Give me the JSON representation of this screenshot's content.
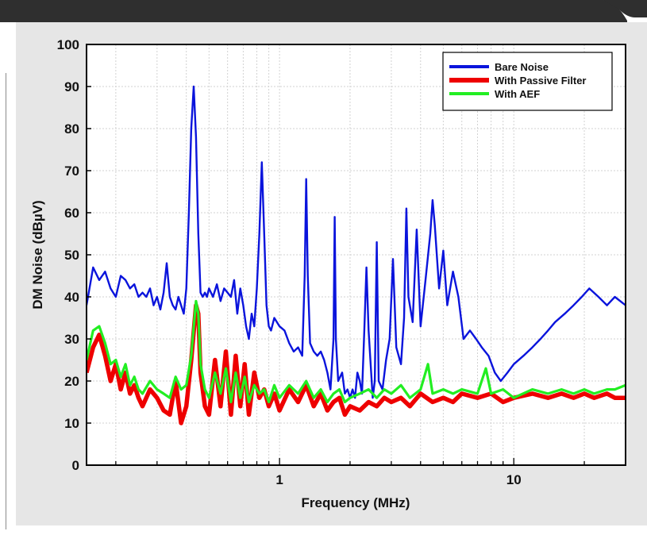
{
  "chart_data": {
    "type": "line",
    "xlabel": "Frequency (MHz)",
    "ylabel": "DM Noise (dBµV)",
    "x_scale": "log",
    "xlim": [
      0.15,
      30
    ],
    "ylim": [
      0,
      100
    ],
    "x_ticks": [
      {
        "value": 1,
        "label": "1"
      },
      {
        "value": 10,
        "label": "10"
      }
    ],
    "y_ticks": [
      0,
      10,
      20,
      30,
      40,
      50,
      60,
      70,
      80,
      90,
      100
    ],
    "grid": true,
    "legend_position": "top-right",
    "series": [
      {
        "name": "Bare Noise",
        "color": "#0a14dc",
        "x": [
          0.15,
          0.16,
          0.17,
          0.18,
          0.19,
          0.2,
          0.21,
          0.22,
          0.23,
          0.24,
          0.25,
          0.26,
          0.27,
          0.28,
          0.29,
          0.3,
          0.31,
          0.32,
          0.33,
          0.34,
          0.35,
          0.36,
          0.37,
          0.38,
          0.39,
          0.4,
          0.41,
          0.42,
          0.43,
          0.44,
          0.45,
          0.46,
          0.47,
          0.48,
          0.49,
          0.5,
          0.52,
          0.54,
          0.56,
          0.58,
          0.6,
          0.62,
          0.64,
          0.66,
          0.68,
          0.7,
          0.72,
          0.74,
          0.76,
          0.78,
          0.8,
          0.82,
          0.84,
          0.86,
          0.88,
          0.9,
          0.92,
          0.95,
          1.0,
          1.05,
          1.1,
          1.15,
          1.2,
          1.25,
          1.28,
          1.3,
          1.32,
          1.35,
          1.4,
          1.45,
          1.5,
          1.55,
          1.6,
          1.65,
          1.7,
          1.72,
          1.74,
          1.78,
          1.85,
          1.9,
          1.95,
          2.0,
          2.05,
          2.1,
          2.15,
          2.2,
          2.25,
          2.3,
          2.35,
          2.4,
          2.5,
          2.55,
          2.6,
          2.65,
          2.75,
          2.85,
          2.95,
          3.05,
          3.15,
          3.3,
          3.4,
          3.48,
          3.55,
          3.7,
          3.85,
          4.0,
          4.2,
          4.4,
          4.5,
          4.6,
          4.8,
          5.0,
          5.2,
          5.5,
          5.8,
          6.1,
          6.5,
          6.9,
          7.3,
          7.8,
          8.3,
          8.8,
          9.4,
          10.0,
          11.0,
          12.0,
          13.0,
          14.0,
          15.0,
          16.5,
          18.0,
          19.5,
          21.0,
          23.0,
          25.0,
          27.0,
          30.0
        ],
        "values": [
          38,
          47,
          44,
          46,
          42,
          40,
          45,
          44,
          42,
          43,
          40,
          41,
          40,
          42,
          38,
          40,
          37,
          41,
          48,
          40,
          38,
          37,
          40,
          38,
          36,
          42,
          60,
          80,
          90,
          78,
          55,
          41,
          40,
          41,
          40,
          42,
          40,
          43,
          39,
          42,
          41,
          40,
          44,
          36,
          42,
          38,
          33,
          30,
          36,
          33,
          42,
          55,
          72,
          55,
          38,
          33,
          32,
          35,
          33,
          32,
          29,
          27,
          28,
          26,
          45,
          68,
          45,
          29,
          27,
          26,
          27,
          25,
          22,
          18,
          30,
          59,
          30,
          20,
          22,
          17,
          18,
          16,
          18,
          16,
          22,
          20,
          17,
          32,
          47,
          32,
          16,
          20,
          53,
          20,
          18,
          25,
          30,
          49,
          28,
          24,
          35,
          61,
          40,
          34,
          56,
          33,
          44,
          55,
          63,
          57,
          42,
          51,
          38,
          46,
          40,
          30,
          32,
          30,
          28,
          26,
          22,
          20,
          22,
          24,
          26,
          28,
          30,
          32,
          34,
          36,
          38,
          40,
          42,
          40,
          38,
          40,
          38
        ]
      },
      {
        "name": "With Passive Filter",
        "color": "#ee0000",
        "x": [
          0.15,
          0.16,
          0.17,
          0.18,
          0.19,
          0.2,
          0.21,
          0.22,
          0.23,
          0.24,
          0.25,
          0.26,
          0.28,
          0.3,
          0.32,
          0.34,
          0.36,
          0.38,
          0.4,
          0.42,
          0.44,
          0.45,
          0.46,
          0.48,
          0.5,
          0.53,
          0.56,
          0.59,
          0.62,
          0.65,
          0.68,
          0.71,
          0.74,
          0.78,
          0.82,
          0.86,
          0.9,
          0.95,
          1.0,
          1.1,
          1.2,
          1.3,
          1.4,
          1.5,
          1.6,
          1.7,
          1.8,
          1.9,
          2.0,
          2.2,
          2.4,
          2.6,
          2.8,
          3.0,
          3.3,
          3.6,
          4.0,
          4.5,
          5.0,
          5.5,
          6.0,
          7.0,
          8.0,
          9.0,
          10.0,
          12.0,
          14.0,
          16.0,
          18.0,
          20.0,
          22.0,
          25.0,
          27.0,
          30.0
        ],
        "values": [
          22,
          28,
          31,
          26,
          20,
          24,
          18,
          22,
          17,
          19,
          16,
          14,
          18,
          16,
          13,
          12,
          20,
          10,
          14,
          25,
          38,
          36,
          22,
          14,
          12,
          25,
          14,
          27,
          12,
          26,
          14,
          24,
          12,
          22,
          16,
          18,
          14,
          17,
          13,
          18,
          15,
          19,
          14,
          17,
          13,
          15,
          16,
          12,
          14,
          13,
          15,
          14,
          16,
          15,
          16,
          14,
          17,
          15,
          16,
          15,
          17,
          16,
          17,
          15,
          16,
          17,
          16,
          17,
          16,
          17,
          16,
          17,
          16,
          16
        ]
      },
      {
        "name": "With AEF",
        "color": "#22ee22",
        "x": [
          0.15,
          0.16,
          0.17,
          0.18,
          0.19,
          0.2,
          0.21,
          0.22,
          0.23,
          0.24,
          0.25,
          0.26,
          0.28,
          0.3,
          0.32,
          0.34,
          0.36,
          0.38,
          0.4,
          0.42,
          0.44,
          0.45,
          0.46,
          0.48,
          0.5,
          0.53,
          0.56,
          0.59,
          0.62,
          0.65,
          0.68,
          0.71,
          0.74,
          0.78,
          0.82,
          0.86,
          0.9,
          0.95,
          1.0,
          1.1,
          1.2,
          1.3,
          1.4,
          1.5,
          1.6,
          1.7,
          1.8,
          1.9,
          2.0,
          2.2,
          2.4,
          2.6,
          2.8,
          3.0,
          3.3,
          3.6,
          4.0,
          4.3,
          4.5,
          5.0,
          5.5,
          6.0,
          7.0,
          7.6,
          8.0,
          9.0,
          10.0,
          12.0,
          14.0,
          16.0,
          18.0,
          20.0,
          22.0,
          25.0,
          27.0,
          30.0
        ],
        "values": [
          25,
          32,
          33,
          29,
          24,
          25,
          21,
          24,
          19,
          21,
          18,
          17,
          20,
          18,
          17,
          16,
          21,
          18,
          19,
          26,
          39,
          36,
          24,
          18,
          16,
          22,
          17,
          23,
          15,
          22,
          16,
          21,
          15,
          19,
          17,
          18,
          15,
          19,
          16,
          19,
          17,
          20,
          16,
          18,
          15,
          17,
          18,
          15,
          16,
          17,
          18,
          16,
          18,
          17,
          19,
          16,
          18,
          24,
          17,
          18,
          17,
          18,
          17,
          23,
          17,
          18,
          16,
          18,
          17,
          18,
          17,
          18,
          17,
          18,
          18,
          19
        ]
      }
    ]
  }
}
